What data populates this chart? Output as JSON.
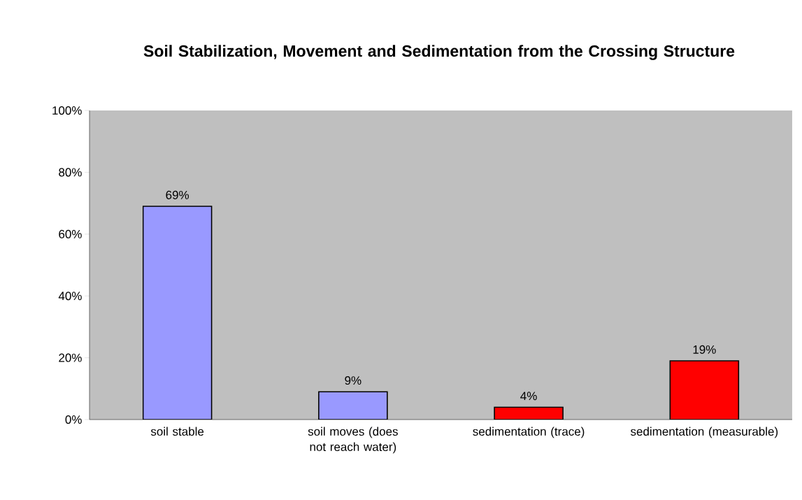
{
  "chart_data": {
    "type": "bar",
    "title": "Soil Stabilization, Movement and Sedimentation from the Crossing Structure",
    "categories": [
      "soil stable",
      "soil moves (does not reach water)",
      "sedimentation (trace)",
      "sedimentation (measurable)"
    ],
    "values": [
      69,
      9,
      4,
      19
    ],
    "colors": [
      "#9999ff",
      "#9999ff",
      "#ff0000",
      "#ff0000"
    ],
    "value_labels": [
      "69%",
      "9%",
      "4%",
      "19%"
    ],
    "ylim": [
      0,
      100
    ],
    "yticks": [
      {
        "value": 0,
        "label": "0%"
      },
      {
        "value": 20,
        "label": "20%"
      },
      {
        "value": 40,
        "label": "40%"
      },
      {
        "value": 60,
        "label": "60%"
      },
      {
        "value": 80,
        "label": "80%"
      },
      {
        "value": 100,
        "label": "100%"
      }
    ]
  }
}
